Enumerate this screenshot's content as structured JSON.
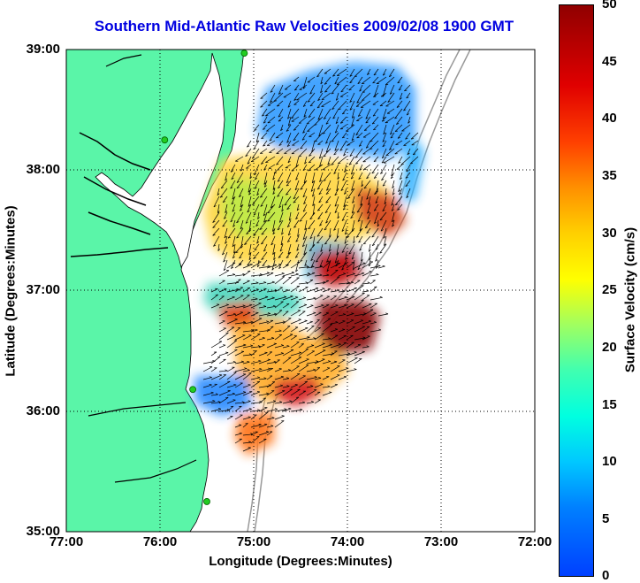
{
  "title": "Southern Mid-Atlantic Raw Velocities 2009/02/08 1900 GMT",
  "xlabel": "Longitude (Degrees:Minutes)",
  "ylabel": "Latitude (Degrees:Minutes)",
  "colorbar_label": "Surface Velocity (cm/s)",
  "x_ticks": [
    "77:00",
    "76:00",
    "75:00",
    "74:00",
    "73:00",
    "72:00"
  ],
  "y_ticks": [
    "39:00",
    "38:00",
    "37:00",
    "36:00",
    "35:00"
  ],
  "colorbar_ticks": [
    "50",
    "45",
    "40",
    "35",
    "30",
    "25",
    "20",
    "15",
    "10",
    "5",
    "0"
  ],
  "colors": {
    "land": "#5af5a8",
    "title": "#0000e0",
    "station": "#22cc22",
    "isobath": "#999999",
    "grid": "#000000"
  },
  "map_extent": {
    "lon": [
      -77,
      -72
    ],
    "lat": [
      35,
      39
    ]
  },
  "colorbar_range": [
    0,
    50
  ],
  "stations": [
    {
      "lon": -75.1,
      "lat": 38.97
    },
    {
      "lon": -75.95,
      "lat": 38.25
    },
    {
      "lon": -75.65,
      "lat": 36.18
    },
    {
      "lon": -75.5,
      "lat": 35.25
    }
  ]
}
